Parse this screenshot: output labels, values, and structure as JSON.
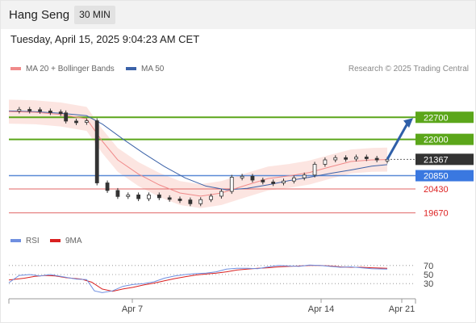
{
  "header": {
    "title": "Hang Seng",
    "interval": "30 MIN"
  },
  "timestamp": "Tuesday, April 15, 2025 9:04:23 AM CET",
  "legend": {
    "ma20_label": "MA 20 + Bollinger Bands",
    "ma50_label": "MA 50",
    "rsi_label": "RSI",
    "rsi_ma_label": "9MA"
  },
  "credit": "Research © 2025 Trading Central",
  "colors": {
    "ma20": "#f08a8a",
    "ma50": "#3b62a8",
    "bollinger": "#fbe0dc",
    "resistance": "#5ba61a",
    "support": "#e06666",
    "pivot": "#5a8ad6",
    "last": "#333333",
    "arrow": "#2f5fa8",
    "rsi": "#6f8fe0",
    "rsi_ma": "#d92020"
  },
  "chart_data": [
    {
      "type": "line",
      "title": "Hang Seng",
      "ylim": [
        19200,
        23500
      ],
      "x_ticks": [
        "Apr 7",
        "Apr 14",
        "Apr 21"
      ],
      "price": [
        [
          0,
          22920
        ],
        [
          4,
          22950
        ],
        [
          8,
          22940
        ],
        [
          12,
          22900
        ],
        [
          16,
          22870
        ],
        [
          20,
          22840
        ],
        [
          22,
          22580
        ],
        [
          26,
          22570
        ],
        [
          30,
          22590
        ],
        [
          34,
          20620
        ],
        [
          38,
          20380
        ],
        [
          42,
          20190
        ],
        [
          46,
          20240
        ],
        [
          50,
          20120
        ],
        [
          54,
          20240
        ],
        [
          58,
          20150
        ],
        [
          62,
          20110
        ],
        [
          66,
          20080
        ],
        [
          70,
          19960
        ],
        [
          74,
          20090
        ],
        [
          78,
          20200
        ],
        [
          82,
          20350
        ],
        [
          86,
          20800
        ],
        [
          90,
          20830
        ],
        [
          94,
          20710
        ],
        [
          98,
          20650
        ],
        [
          102,
          20620
        ],
        [
          106,
          20680
        ],
        [
          110,
          20780
        ],
        [
          114,
          20870
        ],
        [
          118,
          21210
        ],
        [
          122,
          21350
        ],
        [
          126,
          21420
        ],
        [
          130,
          21380
        ],
        [
          134,
          21440
        ],
        [
          138,
          21400
        ],
        [
          142,
          21360
        ],
        [
          146,
          21367
        ]
      ],
      "ma20": [
        [
          0,
          22880
        ],
        [
          10,
          22860
        ],
        [
          20,
          22790
        ],
        [
          30,
          22650
        ],
        [
          36,
          21950
        ],
        [
          42,
          21350
        ],
        [
          50,
          20900
        ],
        [
          58,
          20560
        ],
        [
          66,
          20300
        ],
        [
          74,
          20200
        ],
        [
          82,
          20300
        ],
        [
          92,
          20560
        ],
        [
          100,
          20760
        ],
        [
          108,
          20840
        ],
        [
          116,
          20950
        ],
        [
          124,
          21130
        ],
        [
          132,
          21300
        ],
        [
          140,
          21350
        ],
        [
          146,
          21360
        ]
      ],
      "ma50": [
        [
          0,
          22900
        ],
        [
          10,
          22880
        ],
        [
          20,
          22830
        ],
        [
          30,
          22750
        ],
        [
          36,
          22490
        ],
        [
          44,
          22010
        ],
        [
          52,
          21560
        ],
        [
          60,
          21140
        ],
        [
          68,
          20780
        ],
        [
          76,
          20520
        ],
        [
          84,
          20400
        ],
        [
          92,
          20450
        ],
        [
          100,
          20560
        ],
        [
          108,
          20690
        ],
        [
          116,
          20800
        ],
        [
          124,
          20920
        ],
        [
          132,
          21030
        ],
        [
          140,
          21150
        ],
        [
          146,
          21200
        ]
      ],
      "levels": {
        "resistance": [
          22700,
          22000
        ],
        "last": 21367,
        "pivot": 20850,
        "support": [
          20430,
          19670
        ]
      },
      "level_labels": [
        "22700",
        "22000",
        "21367",
        "20850",
        "20430",
        "19670"
      ],
      "forecast_target": 22700
    },
    {
      "type": "line",
      "ylim": [
        0,
        100
      ],
      "y_ticks": [
        "70",
        "50",
        "30"
      ],
      "rsi": [
        [
          0,
          32
        ],
        [
          4,
          48
        ],
        [
          8,
          50
        ],
        [
          12,
          47
        ],
        [
          16,
          50
        ],
        [
          20,
          46
        ],
        [
          26,
          40
        ],
        [
          30,
          39
        ],
        [
          33,
          14
        ],
        [
          36,
          10
        ],
        [
          40,
          14
        ],
        [
          44,
          24
        ],
        [
          48,
          28
        ],
        [
          52,
          30
        ],
        [
          56,
          34
        ],
        [
          60,
          42
        ],
        [
          64,
          47
        ],
        [
          68,
          50
        ],
        [
          72,
          52
        ],
        [
          76,
          53
        ],
        [
          80,
          56
        ],
        [
          84,
          62
        ],
        [
          88,
          64
        ],
        [
          92,
          64
        ],
        [
          96,
          63
        ],
        [
          100,
          67
        ],
        [
          104,
          70
        ],
        [
          108,
          69
        ],
        [
          112,
          68
        ],
        [
          116,
          71
        ],
        [
          120,
          70
        ],
        [
          124,
          68
        ],
        [
          128,
          66
        ],
        [
          132,
          67
        ],
        [
          136,
          65
        ],
        [
          140,
          63
        ],
        [
          146,
          62
        ]
      ],
      "rsi_ma": [
        [
          0,
          38
        ],
        [
          6,
          42
        ],
        [
          10,
          46
        ],
        [
          14,
          48
        ],
        [
          18,
          47
        ],
        [
          22,
          43
        ],
        [
          28,
          40
        ],
        [
          32,
          33
        ],
        [
          36,
          18
        ],
        [
          40,
          13
        ],
        [
          44,
          18
        ],
        [
          48,
          22
        ],
        [
          52,
          27
        ],
        [
          56,
          31
        ],
        [
          60,
          36
        ],
        [
          64,
          41
        ],
        [
          68,
          45
        ],
        [
          72,
          49
        ],
        [
          76,
          51
        ],
        [
          80,
          53
        ],
        [
          84,
          56
        ],
        [
          88,
          60
        ],
        [
          92,
          62
        ],
        [
          96,
          64
        ],
        [
          100,
          65
        ],
        [
          104,
          67
        ],
        [
          108,
          68
        ],
        [
          112,
          69
        ],
        [
          116,
          70
        ],
        [
          120,
          70
        ],
        [
          124,
          69
        ],
        [
          128,
          67
        ],
        [
          132,
          66
        ],
        [
          136,
          66
        ],
        [
          140,
          65
        ],
        [
          146,
          64
        ]
      ]
    }
  ]
}
